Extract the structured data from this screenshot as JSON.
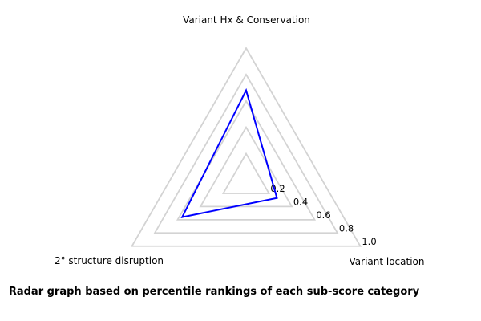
{
  "chart_data": {
    "type": "radar",
    "categories": [
      "Variant Hx & Conservation",
      "Variant location",
      "2° structure disruption"
    ],
    "values": [
      0.68,
      0.27,
      0.56
    ],
    "rticks": [
      0.2,
      0.4,
      0.6,
      0.8,
      1.0
    ],
    "rtick_labels": [
      "0.2",
      "0.4",
      "0.6",
      "0.8",
      "1.0"
    ],
    "rlim": [
      0,
      1.0
    ],
    "grid": true,
    "grid_shape": "polygon",
    "legend_position": "none",
    "line_color": "#0000ff",
    "grid_color": "#d3d3d3",
    "text_color": "#000000",
    "background_color": "#ffffff",
    "caption": "Radar graph based on percentile rankings of each sub-score category"
  }
}
